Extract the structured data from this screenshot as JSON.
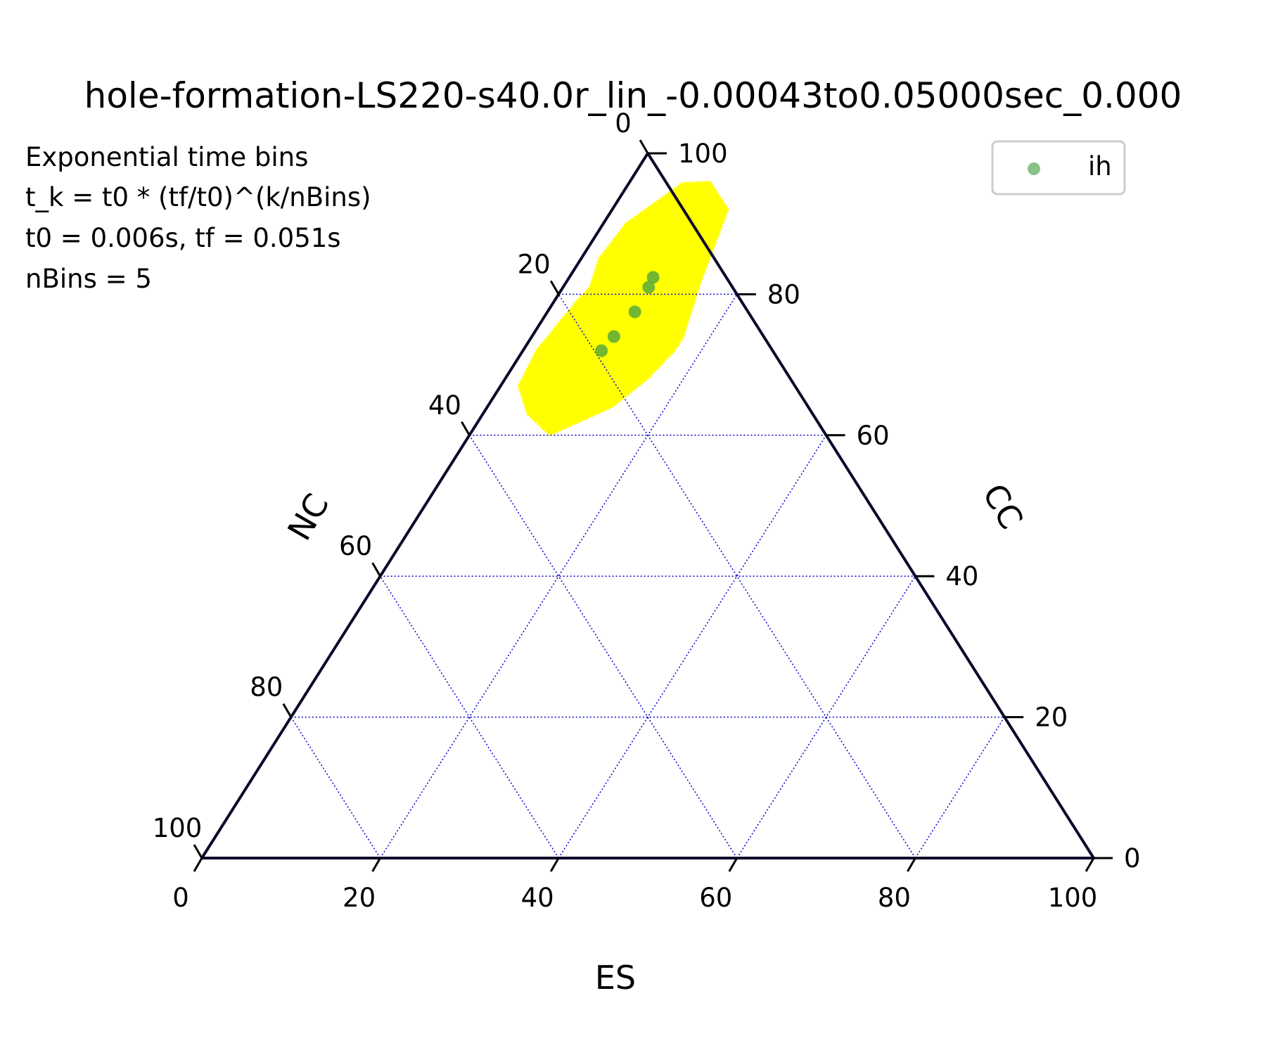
{
  "chart_data": {
    "type": "scatter",
    "subtype": "ternary",
    "title": "hole-formation-LS220-s40.0r_lin_-0.00043to0.05000sec_0.000",
    "axes": {
      "bottom": {
        "label": "ES",
        "ticks": [
          "0",
          "20",
          "40",
          "60",
          "80",
          "100"
        ]
      },
      "right": {
        "label": "CC",
        "ticks": [
          "0",
          "20",
          "40",
          "60",
          "80",
          "100"
        ]
      },
      "left": {
        "label": "NC",
        "ticks": [
          "0",
          "20",
          "40",
          "60",
          "80",
          "100"
        ]
      }
    },
    "grid": true,
    "grid_step": 20,
    "annotation": [
      "Exponential time bins",
      "t_k = t0 * (tf/t0)^(k/nBins)",
      "t0 = 0.006s, tf = 0.051s",
      "nBins = 5"
    ],
    "legend": {
      "position": "top-right",
      "entries": [
        {
          "label": "ih",
          "color": "#3a9a3a"
        }
      ]
    },
    "series": [
      {
        "name": "ih",
        "color": "#5aaa3a",
        "points": [
          {
            "ES": 9.4,
            "CC": 82.4,
            "NC": 8.2
          },
          {
            "ES": 9.6,
            "CC": 81.0,
            "NC": 9.4
          },
          {
            "ES": 9.8,
            "CC": 77.5,
            "NC": 12.7
          },
          {
            "ES": 9.2,
            "CC": 74.0,
            "NC": 16.8
          },
          {
            "ES": 8.8,
            "CC": 72.0,
            "NC": 19.2
          }
        ]
      }
    ],
    "density_region": {
      "color": "#ffff00",
      "outline": [
        {
          "ES": 2.5,
          "CC": 90.0
        },
        {
          "ES": 6.0,
          "CC": 95.8
        },
        {
          "ES": 9.0,
          "CC": 96.0
        },
        {
          "ES": 13.0,
          "CC": 92.0
        },
        {
          "ES": 14.0,
          "CC": 87.0
        },
        {
          "ES": 15.0,
          "CC": 82.0
        },
        {
          "ES": 16.0,
          "CC": 78.0
        },
        {
          "ES": 17.0,
          "CC": 74.0
        },
        {
          "ES": 17.0,
          "CC": 72.0
        },
        {
          "ES": 16.0,
          "CC": 68.0
        },
        {
          "ES": 14.0,
          "CC": 64.0
        },
        {
          "ES": 9.0,
          "CC": 60.0
        },
        {
          "ES": 5.0,
          "CC": 63.0
        },
        {
          "ES": 2.0,
          "CC": 67.0
        },
        {
          "ES": 1.5,
          "CC": 72.0
        },
        {
          "ES": 2.5,
          "CC": 79.0
        },
        {
          "ES": 3.0,
          "CC": 81.0
        },
        {
          "ES": 2.0,
          "CC": 85.0
        }
      ]
    }
  }
}
